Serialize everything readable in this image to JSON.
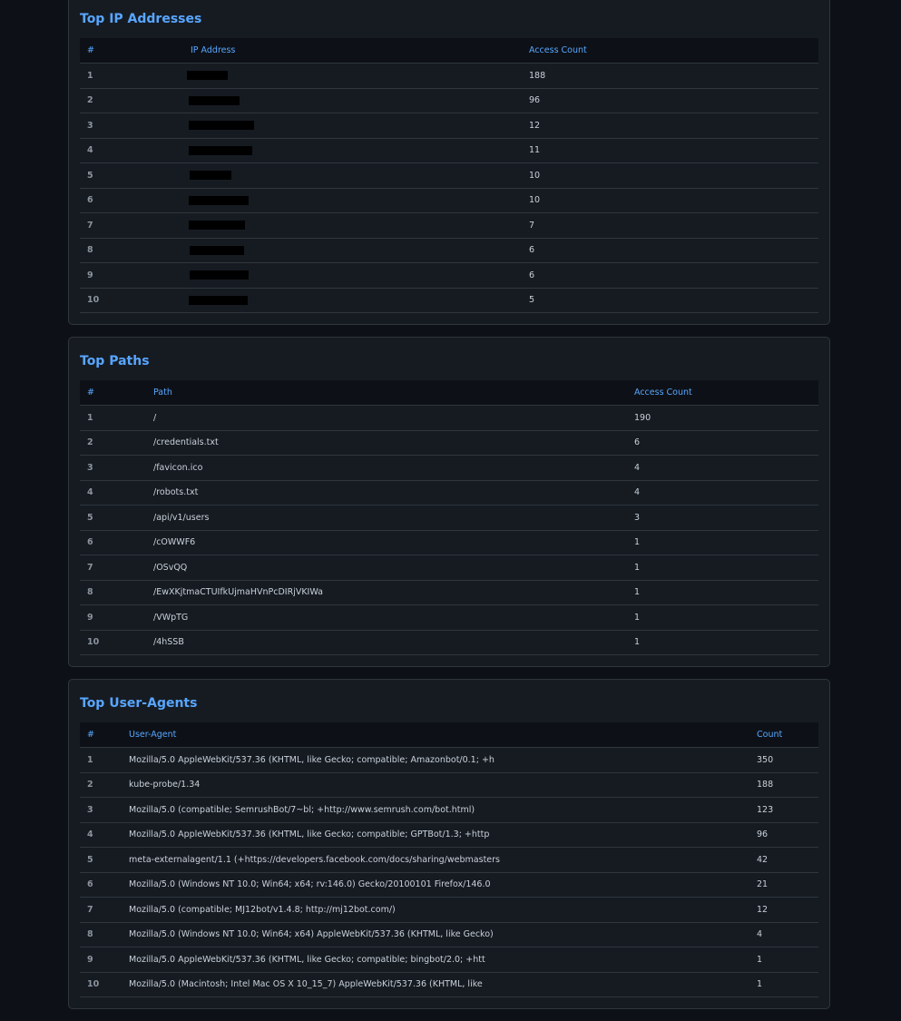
{
  "ip_section": {
    "title": "Top IP Addresses",
    "headers": [
      "#",
      "IP Address",
      "Access Count"
    ],
    "rows": [
      {
        "rank": "1",
        "ip_redacted": true,
        "count": "188"
      },
      {
        "rank": "2",
        "ip_redacted": true,
        "count": "96"
      },
      {
        "rank": "3",
        "ip_redacted": true,
        "count": "12"
      },
      {
        "rank": "4",
        "ip_redacted": true,
        "count": "11"
      },
      {
        "rank": "5",
        "ip_redacted": true,
        "count": "10"
      },
      {
        "rank": "6",
        "ip_redacted": true,
        "count": "10"
      },
      {
        "rank": "7",
        "ip_redacted": true,
        "count": "7"
      },
      {
        "rank": "8",
        "ip_redacted": true,
        "count": "6"
      },
      {
        "rank": "9",
        "ip_redacted": true,
        "count": "6"
      },
      {
        "rank": "10",
        "ip_redacted": true,
        "count": "5"
      }
    ]
  },
  "paths_section": {
    "title": "Top Paths",
    "headers": [
      "#",
      "Path",
      "Access Count"
    ],
    "rows": [
      {
        "rank": "1",
        "path": "/",
        "count": "190"
      },
      {
        "rank": "2",
        "path": "/credentials.txt",
        "count": "6"
      },
      {
        "rank": "3",
        "path": "/favicon.ico",
        "count": "4"
      },
      {
        "rank": "4",
        "path": "/robots.txt",
        "count": "4"
      },
      {
        "rank": "5",
        "path": "/api/v1/users",
        "count": "3"
      },
      {
        "rank": "6",
        "path": "/cOWWF6",
        "count": "1"
      },
      {
        "rank": "7",
        "path": "/OSvQQ",
        "count": "1"
      },
      {
        "rank": "8",
        "path": "/EwXKjtmaCTUIfkUjmaHVnPcDIRjVKIWa",
        "count": "1"
      },
      {
        "rank": "9",
        "path": "/VWpTG",
        "count": "1"
      },
      {
        "rank": "10",
        "path": "/4hSSB",
        "count": "1"
      }
    ]
  },
  "ua_section": {
    "title": "Top User-Agents",
    "headers": [
      "#",
      "User-Agent",
      "Count"
    ],
    "rows": [
      {
        "rank": "1",
        "ua": "Mozilla/5.0 AppleWebKit/537.36 (KHTML, like Gecko; compatible; Amazonbot/0.1; +h",
        "count": "350"
      },
      {
        "rank": "2",
        "ua": "kube-probe/1.34",
        "count": "188"
      },
      {
        "rank": "3",
        "ua": "Mozilla/5.0 (compatible; SemrushBot/7~bl; +http://www.semrush.com/bot.html)",
        "count": "123"
      },
      {
        "rank": "4",
        "ua": "Mozilla/5.0 AppleWebKit/537.36 (KHTML, like Gecko; compatible; GPTBot/1.3; +http",
        "count": "96"
      },
      {
        "rank": "5",
        "ua": "meta-externalagent/1.1 (+https://developers.facebook.com/docs/sharing/webmasters",
        "count": "42"
      },
      {
        "rank": "6",
        "ua": "Mozilla/5.0 (Windows NT 10.0; Win64; x64; rv:146.0) Gecko/20100101 Firefox/146.0",
        "count": "21"
      },
      {
        "rank": "7",
        "ua": "Mozilla/5.0 (compatible; MJ12bot/v1.4.8; http://mj12bot.com/)",
        "count": "12"
      },
      {
        "rank": "8",
        "ua": "Mozilla/5.0 (Windows NT 10.0; Win64; x64) AppleWebKit/537.36 (KHTML, like Gecko)",
        "count": "4"
      },
      {
        "rank": "9",
        "ua": "Mozilla/5.0 AppleWebKit/537.36 (KHTML, like Gecko; compatible; bingbot/2.0; +htt",
        "count": "1"
      },
      {
        "rank": "10",
        "ua": "Mozilla/5.0 (Macintosh; Intel Mac OS X 10_15_7) AppleWebKit/537.36 (KHTML, like",
        "count": "1"
      }
    ]
  },
  "colors": {
    "background": "#0d1117",
    "card": "#161b22",
    "accent": "#58a6ff",
    "text": "#c9d1d9",
    "muted": "#8b949e"
  }
}
